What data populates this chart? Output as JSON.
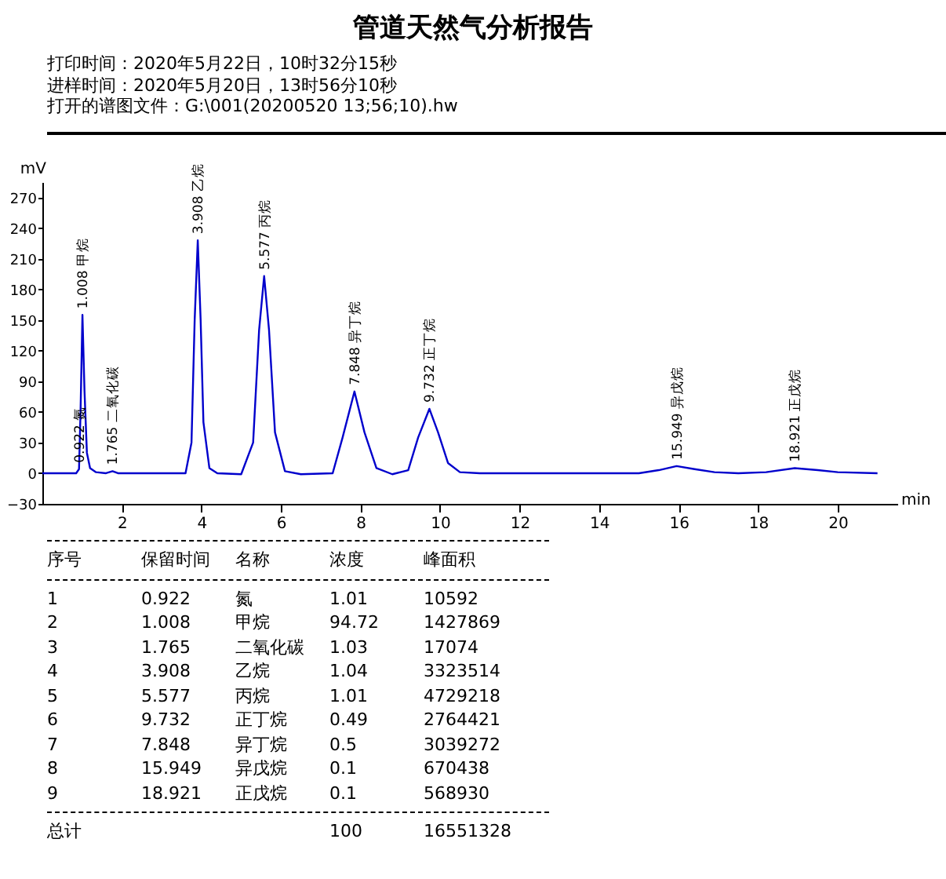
{
  "chart_data": [
    {
      "type": "line",
      "title": "管道天然气分析报告",
      "xlabel": "min",
      "ylabel": "mV",
      "annotations": [
        "打印时间：2020年5月22日，10时32分15秒",
        "进样时间：2020年5月20日，13时56分10秒",
        "打开的谱图文件：G:\\001(20200520 13;56;10).hw",
        {
          "text": "0.922 氮",
          "x": 0.922,
          "y": 4
        },
        {
          "text": "1.008 甲烷",
          "x": 1.008,
          "y": 155
        },
        {
          "text": "1.765 二氧化碳",
          "x": 1.765,
          "y": 2
        },
        {
          "text": "3.908 乙烷",
          "x": 3.908,
          "y": 228
        },
        {
          "text": "5.577 丙烷",
          "x": 5.577,
          "y": 193
        },
        {
          "text": "7.848 异丁烷",
          "x": 7.848,
          "y": 80
        },
        {
          "text": "9.732 正丁烷",
          "x": 9.732,
          "y": 63
        },
        {
          "text": "15.949 异戊烷",
          "x": 15.949,
          "y": 7
        },
        {
          "text": "18.921 正戊烷",
          "x": 18.921,
          "y": 5
        }
      ],
      "xlim": [
        0,
        21.5
      ],
      "xticks": [
        2,
        4,
        6,
        8,
        10,
        12,
        14,
        16,
        18,
        20
      ],
      "ylim": [
        -30,
        285
      ],
      "yticks": [
        -30,
        0,
        30,
        60,
        90,
        120,
        150,
        180,
        210,
        240,
        270
      ],
      "grid": false,
      "legend": false,
      "marker": "none",
      "line_style": "solid",
      "series": [
        {
          "color": "#0000cc",
          "x": [
            0,
            0.85,
            0.922,
            0.96,
            1.008,
            1.06,
            1.12,
            1.2,
            1.35,
            1.6,
            1.765,
            1.9,
            3.6,
            3.75,
            3.83,
            3.908,
            3.98,
            4.05,
            4.2,
            4.4,
            5.0,
            5.3,
            5.45,
            5.577,
            5.7,
            5.85,
            6.1,
            6.5,
            7.3,
            7.55,
            7.848,
            8.1,
            8.4,
            8.8,
            9.2,
            9.45,
            9.732,
            9.95,
            10.2,
            10.5,
            11,
            15.0,
            15.5,
            15.949,
            16.4,
            16.9,
            17.5,
            18.2,
            18.921,
            19.5,
            20,
            21
          ],
          "values": [
            0,
            0,
            4,
            60,
            155,
            80,
            20,
            5,
            1,
            0,
            2,
            0,
            0,
            30,
            150,
            228,
            150,
            50,
            5,
            0,
            -1,
            30,
            140,
            193,
            140,
            40,
            2,
            -1,
            0,
            35,
            80,
            40,
            5,
            -1,
            3,
            35,
            63,
            40,
            10,
            1,
            0,
            0,
            3,
            7,
            4,
            1,
            0,
            1,
            5,
            3,
            1,
            0
          ]
        }
      ]
    },
    {
      "type": "other",
      "annotations": [
        "序号\t保留时间\t名称\t浓度\t峰面积",
        "1\t0.922\t氮\t1.01\t10592",
        "2\t1.008\t甲烷\t94.72\t1427869",
        "3\t1.765\t二氧化碳\t1.03\t17074",
        "4\t3.908\t乙烷\t1.04\t3323514",
        "5\t5.577\t丙烷\t1.01\t4729218",
        "6\t9.732\t正丁烷\t0.49\t2764421",
        "7\t7.848\t异丁烷\t0.5\t3039272",
        "8\t15.949\t异戊烷\t0.1\t670438",
        "9\t18.921\t正戊烷\t0.1\t568930",
        "总计\t\t\t100\t16551328"
      ]
    }
  ]
}
